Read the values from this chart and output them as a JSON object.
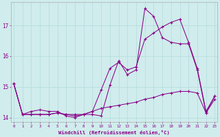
{
  "xlabel": "Windchill (Refroidissement éolien,°C)",
  "x": [
    0,
    1,
    2,
    3,
    4,
    5,
    6,
    7,
    8,
    9,
    10,
    11,
    12,
    13,
    14,
    15,
    16,
    17,
    18,
    19,
    20,
    21,
    22,
    23
  ],
  "line_zigzag": [
    15.1,
    14.1,
    14.2,
    14.25,
    14.2,
    14.2,
    14.05,
    14.0,
    14.1,
    14.1,
    14.05,
    15.05,
    15.85,
    15.4,
    15.55,
    17.55,
    17.3,
    16.6,
    16.45,
    16.4,
    16.4,
    15.55,
    14.15,
    14.7
  ],
  "line_smooth": [
    15.1,
    14.1,
    14.1,
    14.1,
    14.1,
    14.15,
    14.1,
    14.05,
    14.1,
    14.2,
    14.9,
    15.6,
    15.8,
    15.55,
    15.65,
    16.55,
    16.75,
    16.95,
    17.1,
    17.2,
    16.45,
    15.6,
    14.2,
    14.7
  ],
  "line_flat": [
    15.1,
    14.1,
    14.1,
    14.1,
    14.1,
    14.15,
    14.1,
    14.1,
    14.1,
    14.2,
    14.3,
    14.35,
    14.4,
    14.45,
    14.5,
    14.6,
    14.65,
    14.75,
    14.8,
    14.85,
    14.85,
    14.8,
    14.15,
    14.6
  ],
  "line_color": "#880088",
  "background": "#d0ecec",
  "grid_color": "#b8dede",
  "xlim": [
    0,
    23
  ],
  "ylim": [
    13.85,
    17.75
  ],
  "yticks": [
    14,
    15,
    16,
    17
  ],
  "xticks": [
    0,
    1,
    2,
    3,
    4,
    5,
    6,
    7,
    8,
    9,
    10,
    11,
    12,
    13,
    14,
    15,
    16,
    17,
    18,
    19,
    20,
    21,
    22,
    23
  ]
}
